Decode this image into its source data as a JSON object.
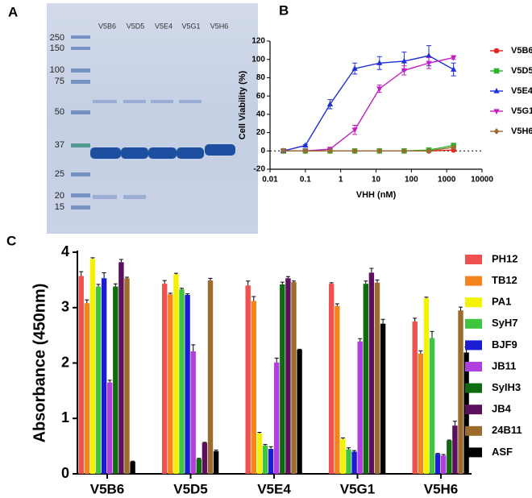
{
  "panel_labels": [
    "A",
    "B",
    "C"
  ],
  "gel": {
    "lanes": [
      "V5B6",
      "V5D5",
      "V5E4",
      "V5G1",
      "V5H6"
    ],
    "markers": [
      250,
      150,
      100,
      75,
      50,
      37,
      25,
      20,
      15
    ]
  },
  "chart_data": [
    {
      "type": "line",
      "xlabel": "VHH (nM)",
      "ylabel": "Cell Viability (%)",
      "xscale": "log",
      "x": [
        0.024,
        0.1,
        0.5,
        2.5,
        12.5,
        62.5,
        312.5,
        1562.5
      ],
      "xlim": [
        0.01,
        10000
      ],
      "xticks": [
        0.01,
        0.1,
        1,
        10,
        100,
        1000,
        10000
      ],
      "ylim": [
        -20,
        120
      ],
      "yticks": [
        -20,
        0,
        20,
        40,
        60,
        80,
        100,
        120
      ],
      "hline": 0,
      "legend": "right",
      "series": [
        {
          "name": "V5B6",
          "color": "#e8231f",
          "marker": "circle",
          "values": [
            0,
            0,
            0,
            0,
            0,
            0,
            0,
            1
          ]
        },
        {
          "name": "V5D5",
          "color": "#2fb52f",
          "marker": "square",
          "values": [
            0,
            0,
            0,
            0,
            0,
            0,
            1,
            6
          ]
        },
        {
          "name": "V5E4",
          "color": "#1f2fd6",
          "marker": "triangle",
          "values": [
            0,
            6,
            51,
            90,
            96,
            98,
            104,
            89
          ],
          "errors": [
            0,
            1,
            5,
            6,
            7,
            10,
            11,
            7
          ]
        },
        {
          "name": "V5G1",
          "color": "#c21fc2",
          "marker": "triangle-down",
          "values": [
            0,
            0,
            2,
            23,
            68,
            88,
            96,
            102
          ],
          "errors": [
            0,
            0,
            2,
            5,
            4,
            5,
            6,
            2
          ]
        },
        {
          "name": "V5H6",
          "color": "#9c6b2e",
          "marker": "diamond",
          "values": [
            0,
            0,
            0,
            0,
            0,
            0,
            0,
            4
          ]
        }
      ]
    },
    {
      "type": "bar",
      "ylabel": "Absorbance (450nm)",
      "categories": [
        "V5B6",
        "V5D5",
        "V5E4",
        "V5G1",
        "V5H6"
      ],
      "ylim": [
        0,
        4
      ],
      "yticks": [
        0,
        1,
        2,
        3,
        4
      ],
      "legend": "right",
      "series": [
        {
          "name": "PH12",
          "color": "#f0504f",
          "values": [
            3.57,
            3.43,
            3.4,
            3.43,
            2.75
          ],
          "errors": [
            0.08,
            0.06,
            0.08,
            0.02,
            0.06
          ]
        },
        {
          "name": "TB12",
          "color": "#f5841f",
          "values": [
            3.08,
            3.24,
            3.12,
            3.03,
            2.17
          ],
          "errors": [
            0.06,
            0.02,
            0.08,
            0.04,
            0.05
          ]
        },
        {
          "name": "PA1",
          "color": "#f5f200",
          "values": [
            3.88,
            3.6,
            0.73,
            0.63,
            3.17
          ],
          "errors": [
            0.02,
            0.02,
            0.02,
            0.02,
            0.02
          ]
        },
        {
          "name": "SyH7",
          "color": "#3ec43e",
          "values": [
            3.38,
            3.33,
            0.51,
            0.44,
            2.45
          ],
          "errors": [
            0.04,
            0.02,
            0.02,
            0.03,
            0.12
          ]
        },
        {
          "name": "BJF9",
          "color": "#1c1cd4",
          "values": [
            3.53,
            3.23,
            0.45,
            0.4,
            0.36
          ],
          "errors": [
            0.1,
            0.02,
            0.04,
            0.02,
            0.01
          ]
        },
        {
          "name": "JB11",
          "color": "#b13fdf",
          "values": [
            1.65,
            2.21,
            2.01,
            2.39,
            0.33
          ],
          "errors": [
            0.04,
            0.12,
            0.08,
            0.05,
            0.02
          ]
        },
        {
          "name": "SyIH3",
          "color": "#0f6b10",
          "values": [
            3.38,
            0.27,
            3.42,
            3.43,
            0.6
          ],
          "errors": [
            0.05,
            0.01,
            0.04,
            0.05,
            0.01
          ]
        },
        {
          "name": "JB4",
          "color": "#5c0f5c",
          "values": [
            3.82,
            0.56,
            3.53,
            3.63,
            0.87
          ],
          "errors": [
            0.05,
            0.01,
            0.03,
            0.08,
            0.08
          ]
        },
        {
          "name": "24B11",
          "color": "#9c6b2e",
          "values": [
            3.53,
            3.49,
            3.46,
            3.45,
            2.95
          ],
          "errors": [
            0.02,
            0.04,
            0.02,
            0.05,
            0.06
          ]
        },
        {
          "name": "ASF",
          "color": "#000000",
          "values": [
            0.22,
            0.41,
            2.24,
            2.71,
            2.19
          ],
          "errors": [
            0.01,
            0.02,
            0.01,
            0.08,
            0.1
          ]
        }
      ]
    }
  ]
}
